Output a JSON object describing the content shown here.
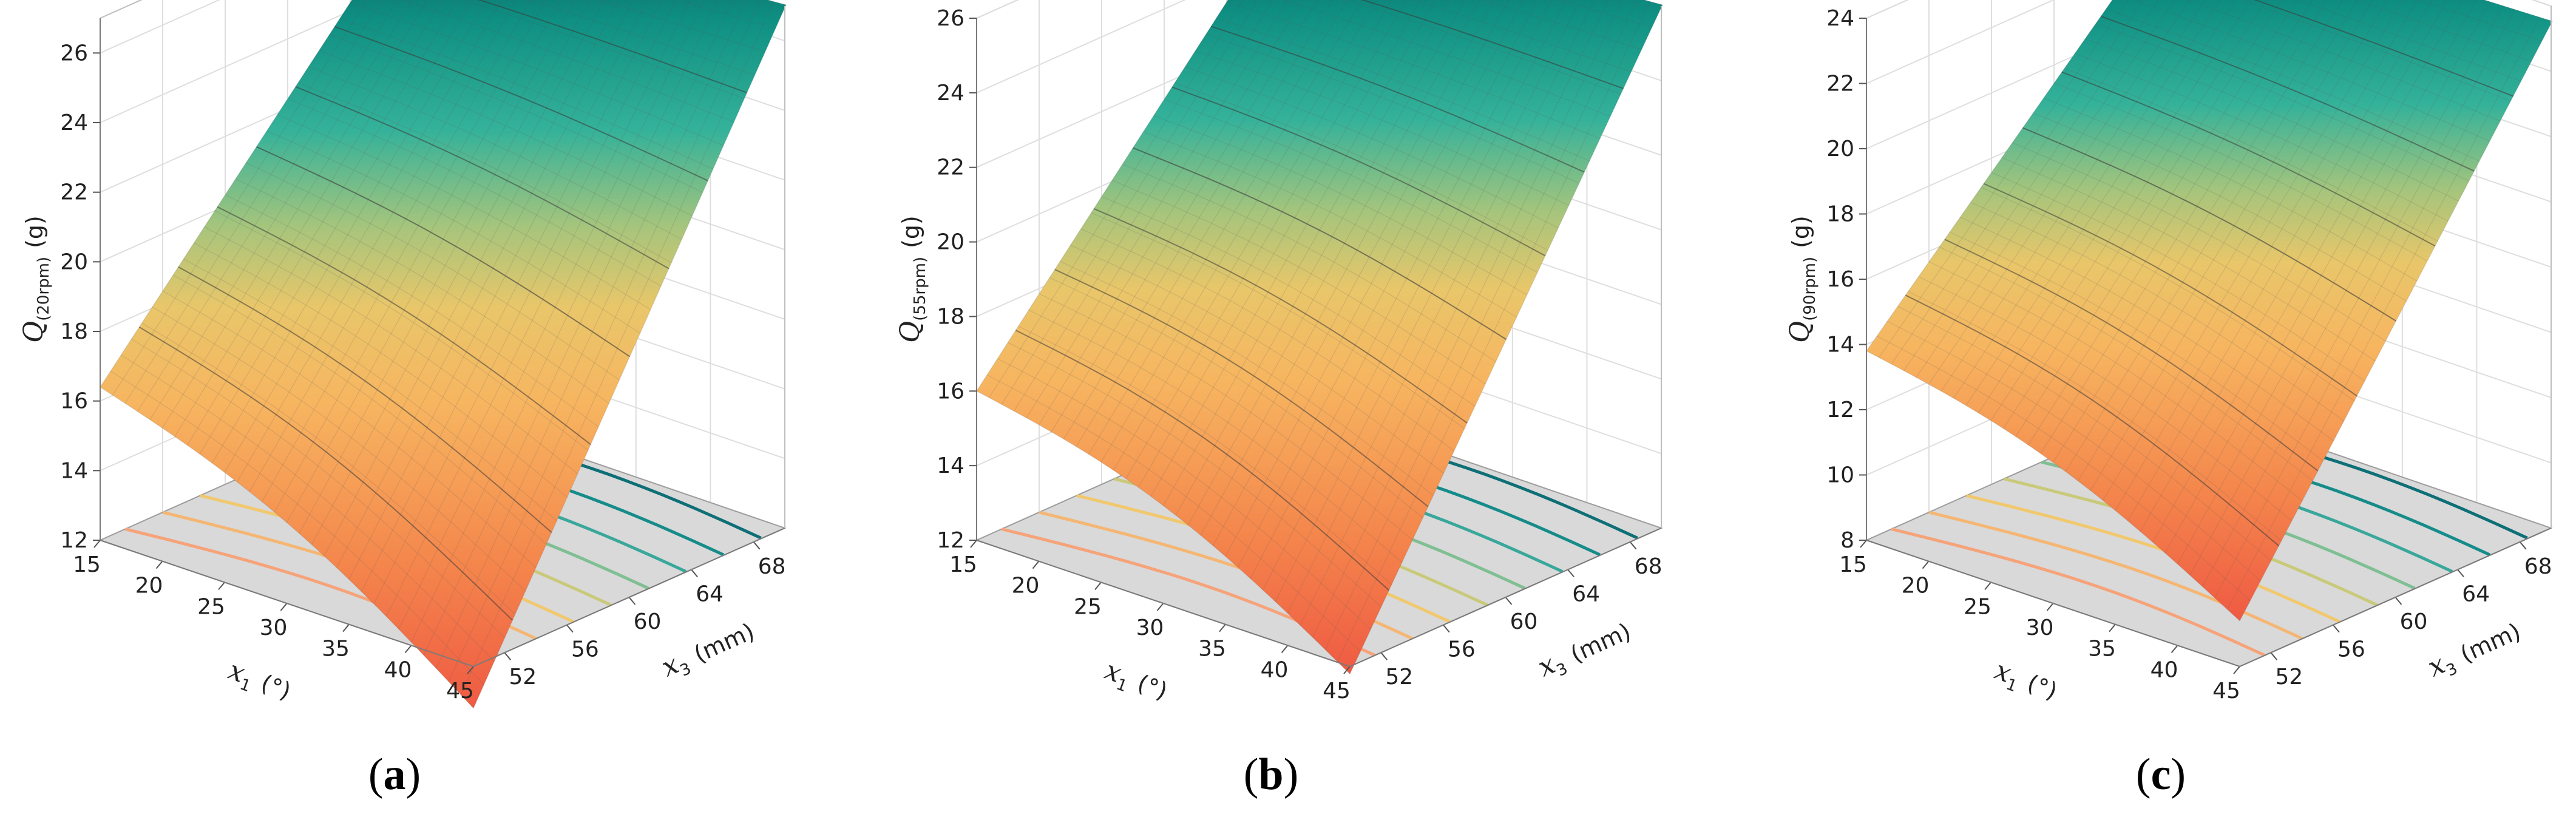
{
  "chart_data": [
    {
      "type": "surface3d",
      "panel": "a",
      "caption_open": "(",
      "caption_letter": "a",
      "caption_close": ")",
      "zlabel_main": "Q",
      "zlabel_sub": "(20rpm)",
      "zlabel_unit": "(g)",
      "xlabel_main": "x",
      "xlabel_sub": "1",
      "xlabel_unit": "(°)",
      "ylabel_main": "x",
      "ylabel_sub": "3",
      "ylabel_unit": "(mm)",
      "x_ticks": [
        "15",
        "20",
        "25",
        "30",
        "35",
        "40",
        "45"
      ],
      "y_ticks": [
        "52",
        "56",
        "60",
        "64",
        "68"
      ],
      "z_ticks": [
        "12",
        "14",
        "16",
        "18",
        "20",
        "22",
        "24",
        "26"
      ],
      "xlim": [
        15,
        45
      ],
      "ylim": [
        50,
        70
      ],
      "zlim": [
        12,
        27
      ],
      "corners": {
        "x15_y52": 16.4,
        "x45_y52": 10.8,
        "x15_y70": 26.2,
        "x45_y70": 27.0
      }
    },
    {
      "type": "surface3d",
      "panel": "b",
      "caption_open": "(",
      "caption_letter": "b",
      "caption_close": ")",
      "zlabel_main": "Q",
      "zlabel_sub": "(55rpm)",
      "zlabel_unit": "(g)",
      "xlabel_main": "x",
      "xlabel_sub": "1",
      "xlabel_unit": "(°)",
      "ylabel_main": "x",
      "ylabel_sub": "3",
      "ylabel_unit": "(mm)",
      "x_ticks": [
        "15",
        "20",
        "25",
        "30",
        "35",
        "40",
        "45"
      ],
      "y_ticks": [
        "52",
        "56",
        "60",
        "64",
        "68"
      ],
      "z_ticks": [
        "12",
        "14",
        "16",
        "18",
        "20",
        "22",
        "24",
        "26"
      ],
      "xlim": [
        15,
        45
      ],
      "ylim": [
        50,
        70
      ],
      "zlim": [
        12,
        26
      ],
      "corners": {
        "x15_y52": 16.0,
        "x45_y52": 11.8,
        "x15_y70": 25.3,
        "x45_y70": 26.0
      }
    },
    {
      "type": "surface3d",
      "panel": "c",
      "caption_open": "(",
      "caption_letter": "c",
      "caption_close": ")",
      "zlabel_main": "Q",
      "zlabel_sub": "(90rpm)",
      "zlabel_unit": "(g)",
      "xlabel_main": "x",
      "xlabel_sub": "1",
      "xlabel_unit": "(°)",
      "ylabel_main": "x",
      "ylabel_sub": "3",
      "ylabel_unit": "(mm)",
      "x_ticks": [
        "15",
        "20",
        "25",
        "30",
        "35",
        "40",
        "45"
      ],
      "y_ticks": [
        "52",
        "56",
        "60",
        "64",
        "68"
      ],
      "z_ticks": [
        "8",
        "10",
        "12",
        "14",
        "16",
        "18",
        "20",
        "22",
        "24"
      ],
      "xlim": [
        15,
        45
      ],
      "ylim": [
        50,
        70
      ],
      "zlim": [
        8,
        24
      ],
      "corners": {
        "x15_y52": 13.8,
        "x45_y52": 9.4,
        "x15_y70": 23.2,
        "x45_y70": 23.5
      }
    }
  ]
}
